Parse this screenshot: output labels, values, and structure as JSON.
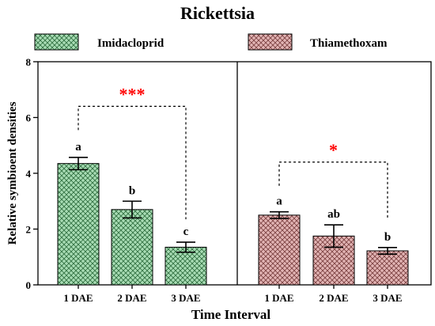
{
  "chart_data": {
    "type": "bar",
    "title": "Rickettsia",
    "xlabel": "Time Interval",
    "ylabel": "Relative symbioent densities",
    "ylim": [
      0,
      8
    ],
    "yticks": [
      "0",
      "2",
      "4",
      "6",
      "8"
    ],
    "categories": [
      "1 DAE",
      "2 DAE",
      "3 DAE"
    ],
    "series": [
      {
        "name": "Imidacloprid",
        "color": "#a8dcb4",
        "values": [
          4.35,
          2.7,
          1.35
        ],
        "errors": [
          0.22,
          0.3,
          0.18
        ],
        "letters": [
          "a",
          "b",
          "c"
        ],
        "significance": "***"
      },
      {
        "name": "Thiamethoxam",
        "color": "#e2b4b4",
        "values": [
          2.5,
          1.75,
          1.22
        ],
        "errors": [
          0.12,
          0.4,
          0.12
        ],
        "letters": [
          "a",
          "ab",
          "b"
        ],
        "significance": "*"
      }
    ],
    "significance_color": "#ff0000",
    "legend_position": "top",
    "grid": false
  }
}
